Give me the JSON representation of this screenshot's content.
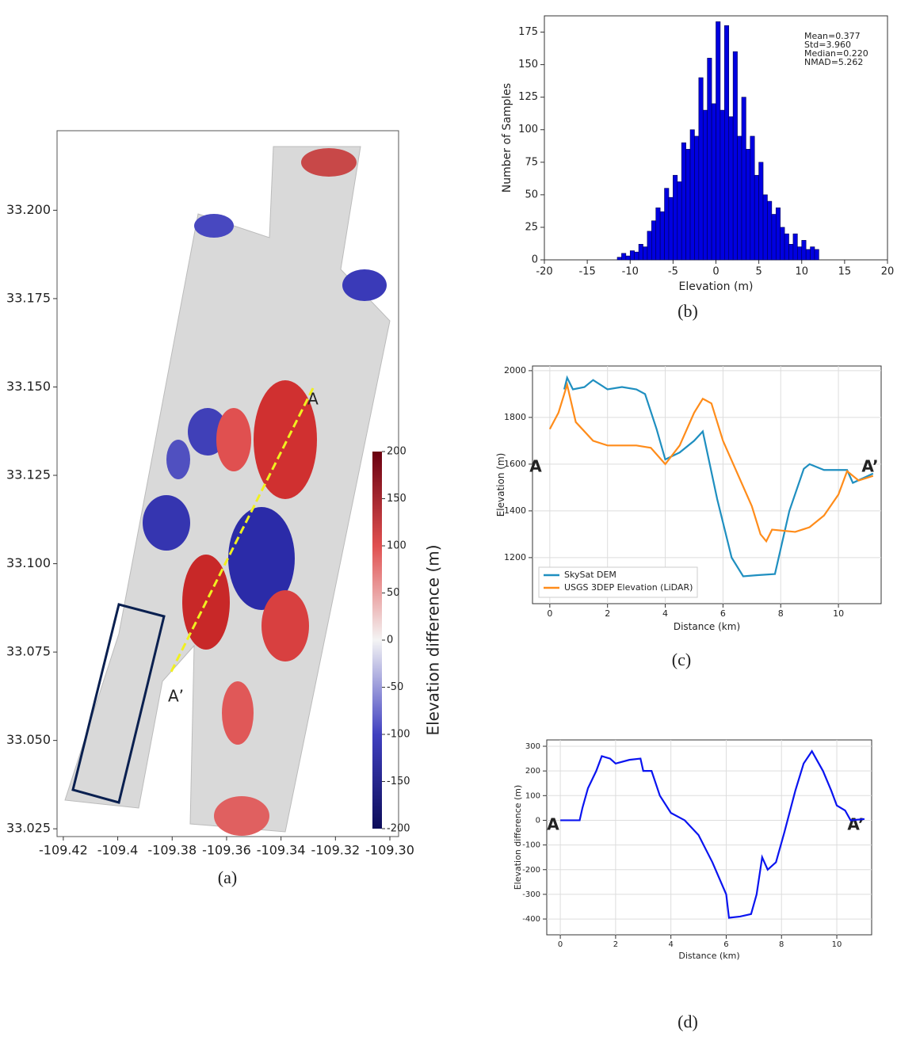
{
  "chart_data": [
    {
      "type": "map",
      "caption": "(a)",
      "xlim": [
        -109.4223,
        -109.2968
      ],
      "xticks": [
        -109.42,
        -109.4,
        -109.38,
        -109.36,
        -109.34,
        -109.32,
        {
          "value": -109.3,
          "label": "-109.30"
        }
      ],
      "ylim": [
        33.0228,
        33.2225
      ],
      "yticks": [
        {
          "value": 33.025,
          "label": "33.025"
        },
        {
          "value": 33.05,
          "label": "33.050"
        },
        {
          "value": 33.075,
          "label": "33.075"
        },
        {
          "value": 33.1,
          "label": "33.100"
        },
        {
          "value": 33.125,
          "label": "33.125"
        },
        {
          "value": 33.15,
          "label": "33.150"
        },
        {
          "value": 33.175,
          "label": "33.175"
        },
        {
          "value": 33.2,
          "label": "33.200"
        }
      ],
      "colorbar": {
        "label": "Elevation difference (m)",
        "lim": [
          -200,
          200
        ],
        "ticks": [
          -200,
          -150,
          -100,
          -50,
          0,
          50,
          100,
          150,
          200
        ]
      },
      "annotations": [
        "A",
        "A’"
      ]
    },
    {
      "type": "histogram",
      "caption": "(b)",
      "xlabel": "Elevation (m)",
      "ylabel": "Number of Samples",
      "color": "#0000e0",
      "xlim": [
        -20,
        20
      ],
      "xticks": [
        -20,
        -15,
        -10,
        -5,
        0,
        5,
        10,
        15,
        20
      ],
      "ylim": [
        0,
        187.5
      ],
      "yticks": [
        0,
        25,
        50,
        75,
        100,
        125,
        150,
        175
      ],
      "annotations": [
        "Mean=0.377",
        "Std=3.960",
        "Median=0.220",
        "NMAD=5.262"
      ],
      "bins": [
        -11.5,
        -11,
        -10.5,
        -10,
        -9.5,
        -9,
        -8.5,
        -8,
        -7.5,
        -7,
        -6.5,
        -6,
        -5.5,
        -5,
        -4.5,
        -4,
        -3.5,
        -3,
        -2.5,
        -2,
        -1.5,
        -1,
        -0.5,
        0,
        0.5,
        1,
        1.5,
        2,
        2.5,
        3,
        3.5,
        4,
        4.5,
        5,
        5.5,
        6,
        6.5,
        7,
        7.5,
        8,
        8.5,
        9,
        9.5,
        10,
        10.5,
        11,
        11.5,
        12
      ],
      "values": [
        2,
        5,
        3,
        7,
        6,
        12,
        10,
        22,
        30,
        40,
        37,
        55,
        48,
        65,
        60,
        90,
        85,
        100,
        95,
        140,
        115,
        155,
        120,
        183,
        115,
        180,
        110,
        160,
        95,
        125,
        85,
        95,
        65,
        75,
        50,
        45,
        35,
        40,
        25,
        20,
        12,
        20,
        10,
        15,
        8,
        10,
        8
      ]
    },
    {
      "type": "line",
      "caption": "(c)",
      "xlabel": "Distance (km)",
      "ylabel": "Elevation (m)",
      "grid": true,
      "legend": "lower left",
      "xlim": [
        -0.6,
        11.48
      ],
      "xticks": [
        0,
        2,
        4,
        6,
        8,
        10
      ],
      "ylim": [
        1003,
        2020
      ],
      "yticks": [
        1200,
        1400,
        1600,
        1800,
        2000
      ],
      "annotations": [
        "A",
        "A’"
      ],
      "series": [
        {
          "name": "SkySat DEM",
          "color": "#1f8fc0",
          "x": [
            0.5,
            0.6,
            0.8,
            1.2,
            1.5,
            2,
            2.5,
            3,
            3.3,
            3.7,
            4,
            4.5,
            5,
            5.3,
            5.8,
            6.3,
            6.7,
            7.2,
            7.8,
            8.3,
            8.8,
            9,
            9.5,
            10,
            10.3,
            10.5,
            11.2
          ],
          "values": [
            1920,
            1970,
            1920,
            1930,
            1960,
            1920,
            1930,
            1920,
            1900,
            1750,
            1620,
            1650,
            1700,
            1740,
            1450,
            1200,
            1120,
            1125,
            1130,
            1400,
            1580,
            1600,
            1575,
            1575,
            1575,
            1520,
            1560
          ]
        },
        {
          "name": "USGS 3DEP Elevation (LiDAR)",
          "color": "#ff8c1a",
          "x": [
            0,
            0.3,
            0.6,
            0.9,
            1.5,
            2,
            3,
            3.5,
            4,
            4.5,
            5,
            5.3,
            5.6,
            6,
            6.5,
            7,
            7.3,
            7.5,
            7.7,
            8.5,
            9,
            9.5,
            10,
            10.3,
            10.7,
            11.2
          ],
          "values": [
            1750,
            1820,
            1940,
            1780,
            1700,
            1680,
            1680,
            1670,
            1600,
            1680,
            1820,
            1880,
            1860,
            1700,
            1560,
            1420,
            1300,
            1270,
            1320,
            1310,
            1330,
            1380,
            1470,
            1570,
            1530,
            1550
          ]
        }
      ]
    },
    {
      "type": "line",
      "caption": "(d)",
      "xlabel": "Distance (km)",
      "ylabel": "Elevation difference (m)",
      "grid": true,
      "xlim": [
        -0.49,
        11.26
      ],
      "xticks": [
        0,
        2,
        4,
        6,
        8,
        10
      ],
      "ylim": [
        -464,
        325.7
      ],
      "yticks": [
        -400,
        -300,
        -200,
        -100,
        0,
        100,
        200,
        300
      ],
      "annotations": [
        "A",
        "A’"
      ],
      "series": [
        {
          "color": "#0a14f0",
          "x": [
            0,
            0.7,
            0.8,
            1,
            1.3,
            1.5,
            1.8,
            2,
            2.5,
            2.9,
            3,
            3.3,
            3.6,
            4,
            4.5,
            5,
            5.5,
            6,
            6.1,
            6.5,
            6.9,
            7.1,
            7.3,
            7.5,
            7.8,
            8.1,
            8.5,
            8.8,
            9.1,
            9.5,
            9.8,
            10,
            10.3,
            10.5,
            11
          ],
          "values": [
            0,
            0,
            50,
            130,
            200,
            260,
            250,
            230,
            245,
            250,
            200,
            200,
            100,
            30,
            0,
            -60,
            -170,
            -300,
            -395,
            -390,
            -380,
            -300,
            -150,
            -200,
            -170,
            -50,
            120,
            230,
            280,
            200,
            120,
            60,
            40,
            0,
            5
          ]
        }
      ]
    }
  ]
}
